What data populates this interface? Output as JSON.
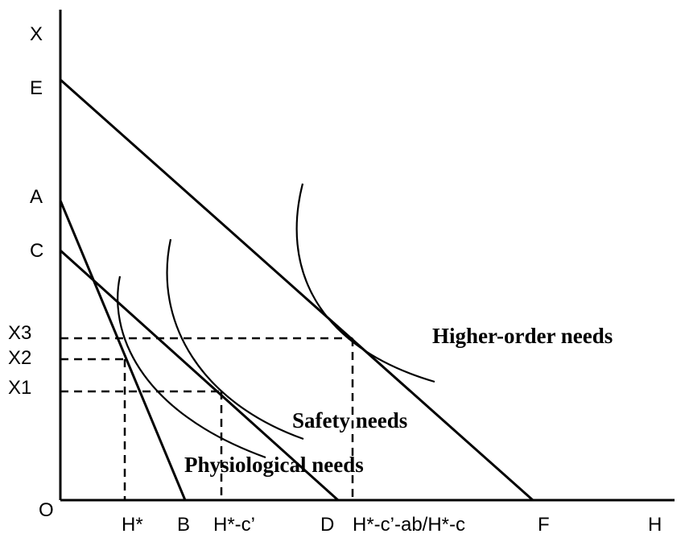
{
  "y_axis": {
    "label": "X",
    "ticks": {
      "E": "E",
      "A": "A",
      "C": "C",
      "X3": "X3",
      "X2": "X2",
      "X1": "X1"
    }
  },
  "x_axis": {
    "label": "H",
    "ticks": {
      "H_star": "H*",
      "B": "B",
      "H_star_c": "H*-c’",
      "D": "D",
      "H_star_combo": "H*-c’-ab/H*-c",
      "F": "F"
    }
  },
  "origin_label": "O",
  "curves": {
    "physiological": "Physiological needs",
    "safety": "Safety needs",
    "higher_order": "Higher-order needs"
  }
}
